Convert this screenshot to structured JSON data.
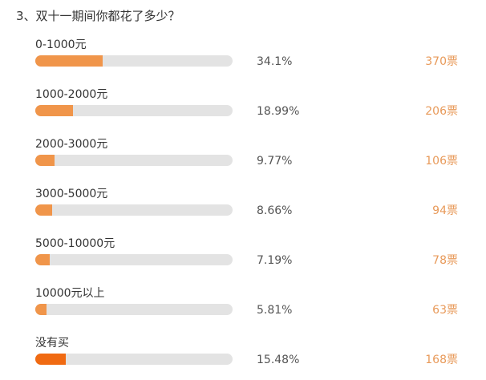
{
  "question": {
    "title": "3、双十一期间你都花了多少？"
  },
  "colors": {
    "bar_fill": "#f0954a",
    "bar_fill_highlight": "#f06a12",
    "bar_track": "#e3e3e3",
    "votes_text": "#e89a5a"
  },
  "options": [
    {
      "label": "0-1000元",
      "percent_text": "34.1%",
      "share": 0.341,
      "votes_text": "370票"
    },
    {
      "label": "1000-2000元",
      "percent_text": "18.99%",
      "share": 0.1899,
      "votes_text": "206票"
    },
    {
      "label": "2000-3000元",
      "percent_text": "9.77%",
      "share": 0.0977,
      "votes_text": "106票"
    },
    {
      "label": "3000-5000元",
      "percent_text": "8.66%",
      "share": 0.0866,
      "votes_text": "94票"
    },
    {
      "label": "5000-10000元",
      "percent_text": "7.19%",
      "share": 0.0719,
      "votes_text": "78票"
    },
    {
      "label": "10000元以上",
      "percent_text": "5.81%",
      "share": 0.0581,
      "votes_text": "63票"
    },
    {
      "label": "没有买",
      "percent_text": "15.48%",
      "share": 0.1548,
      "votes_text": "168票",
      "highlight": true
    }
  ]
}
